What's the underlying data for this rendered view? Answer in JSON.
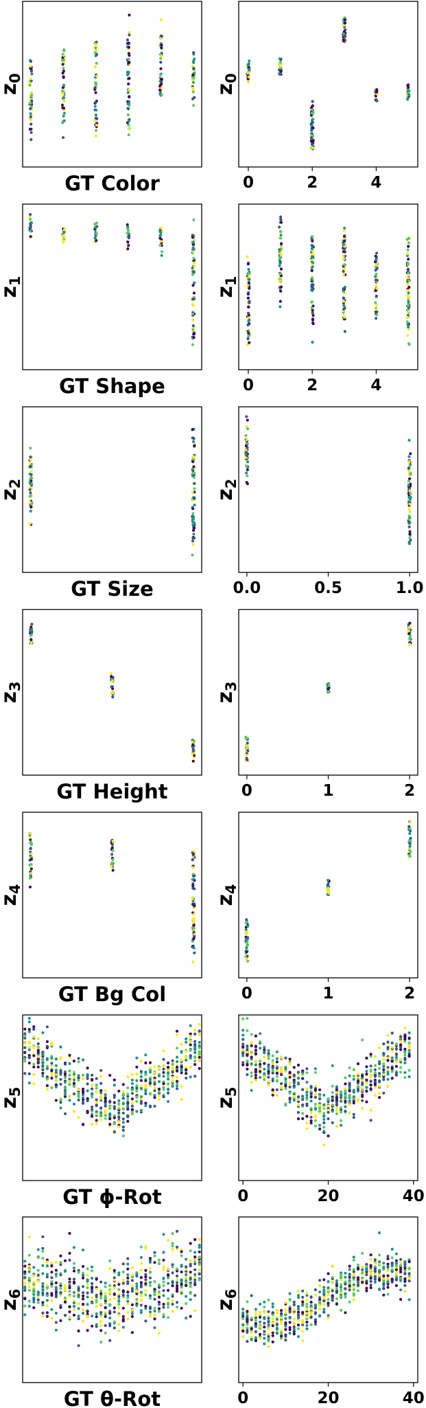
{
  "figure": {
    "left_column": "ground-truth factor vs latent",
    "right_column": "ground-truth index vs latent"
  },
  "colors": {
    "viridis": [
      "#440154",
      "#3b528b",
      "#21918c",
      "#5ec962",
      "#fde725"
    ]
  },
  "chart_data": [
    {
      "type": "scatter",
      "ylabel": "z0",
      "ylabel_sub": "0",
      "left": {
        "xlabel": "GT Color",
        "x_categories": 6,
        "x_ticks": [],
        "groups": [
          {
            "x": 0,
            "ymin": -1.2,
            "ymax": 0.9
          },
          {
            "x": 1,
            "ymin": -0.9,
            "ymax": 1.0
          },
          {
            "x": 2,
            "ymin": -1.0,
            "ymax": 1.3
          },
          {
            "x": 3,
            "ymin": -1.1,
            "ymax": 1.4
          },
          {
            "x": 4,
            "ymin": -0.4,
            "ymax": 1.3
          },
          {
            "x": 5,
            "ymin": -0.4,
            "ymax": 0.9
          }
        ]
      },
      "right": {
        "x_ticks": [
          0,
          2,
          4
        ],
        "xlim": [
          -0.3,
          5.3
        ],
        "groups": [
          {
            "x": 0,
            "ymin": 0.4,
            "ymax": 1.4
          },
          {
            "x": 1,
            "ymin": 0.6,
            "ymax": 1.6
          },
          {
            "x": 2,
            "ymin": -2.6,
            "ymax": -0.1
          },
          {
            "x": 3,
            "ymin": 1.8,
            "ymax": 3.4
          },
          {
            "x": 4,
            "ymin": -0.4,
            "ymax": 0.3
          },
          {
            "x": 5,
            "ymin": -0.3,
            "ymax": 0.5
          }
        ]
      }
    },
    {
      "type": "scatter",
      "ylabel": "z1",
      "ylabel_sub": "1",
      "left": {
        "xlabel": "GT Shape",
        "x_categories": 6,
        "x_ticks": [],
        "groups": [
          {
            "x": 0,
            "ymin": 1.2,
            "ymax": 1.7
          },
          {
            "x": 1,
            "ymin": 1.1,
            "ymax": 1.5
          },
          {
            "x": 2,
            "ymin": 1.1,
            "ymax": 1.6
          },
          {
            "x": 3,
            "ymin": 1.0,
            "ymax": 1.6
          },
          {
            "x": 4,
            "ymin": 0.9,
            "ymax": 1.6
          },
          {
            "x": 5,
            "ymin": -0.9,
            "ymax": 1.7
          }
        ]
      },
      "right": {
        "x_ticks": [
          0,
          2,
          4
        ],
        "xlim": [
          -0.3,
          5.3
        ],
        "groups": [
          {
            "x": 0,
            "ymin": -1.6,
            "ymax": 1.0
          },
          {
            "x": 1,
            "ymin": -0.6,
            "ymax": 1.7
          },
          {
            "x": 2,
            "ymin": -1.2,
            "ymax": 1.6
          },
          {
            "x": 3,
            "ymin": -1.1,
            "ymax": 1.6
          },
          {
            "x": 4,
            "ymin": -0.9,
            "ymax": 1.0
          },
          {
            "x": 5,
            "ymin": -1.4,
            "ymax": 1.6
          }
        ]
      }
    },
    {
      "type": "scatter",
      "ylabel": "z2",
      "ylabel_sub": "2",
      "left": {
        "xlabel": "GT Size",
        "x_categories": 2,
        "x_ticks": [],
        "groups": [
          {
            "x": 0,
            "ymin": -0.6,
            "ymax": 1.3
          },
          {
            "x": 1,
            "ymin": -1.4,
            "ymax": 1.9
          }
        ]
      },
      "right": {
        "x_ticks": [
          "0.0",
          "0.5",
          "1.0"
        ],
        "xlim": [
          -0.05,
          1.05
        ],
        "groups": [
          {
            "x": 0,
            "ymin": 0.2,
            "ymax": 1.9
          },
          {
            "x": 1,
            "ymin": -1.6,
            "ymax": 1.5
          }
        ]
      }
    },
    {
      "type": "scatter",
      "ylabel": "z3",
      "ylabel_sub": "3",
      "left": {
        "xlabel": "GT Height",
        "x_categories": 3,
        "x_ticks": [],
        "groups": [
          {
            "x": 0,
            "ymin": 1.2,
            "ymax": 2.2
          },
          {
            "x": 1,
            "ymin": -0.4,
            "ymax": 0.5
          },
          {
            "x": 2,
            "ymin": -2.6,
            "ymax": -1.6
          }
        ]
      },
      "right": {
        "x_ticks": [
          0,
          1,
          2
        ],
        "xlim": [
          -0.1,
          2.1
        ],
        "groups": [
          {
            "x": 0,
            "ymin": -2.5,
            "ymax": -1.4
          },
          {
            "x": 1,
            "ymin": -0.2,
            "ymax": 0.2
          },
          {
            "x": 2,
            "ymin": 1.2,
            "ymax": 2.2
          }
        ]
      }
    },
    {
      "type": "scatter",
      "ylabel": "z4",
      "ylabel_sub": "4",
      "left": {
        "xlabel": "GT Bg Col",
        "x_categories": 3,
        "x_ticks": [],
        "groups": [
          {
            "x": 0,
            "ymin": -0.2,
            "ymax": 1.3
          },
          {
            "x": 1,
            "ymin": 0.1,
            "ymax": 1.1
          },
          {
            "x": 2,
            "ymin": -1.8,
            "ymax": 1.1
          }
        ]
      },
      "right": {
        "x_ticks": [
          0,
          1,
          2
        ],
        "xlim": [
          -0.1,
          2.1
        ],
        "groups": [
          {
            "x": 0,
            "ymin": -2.1,
            "ymax": -0.5
          },
          {
            "x": 1,
            "ymin": -0.1,
            "ymax": 0.5
          },
          {
            "x": 2,
            "ymin": 0.9,
            "ymax": 2.1
          }
        ]
      }
    },
    {
      "type": "scatter",
      "ylabel": "z5",
      "ylabel_sub": "5",
      "left": {
        "xlabel": "GT ϕ-Rot",
        "x_ticks": [],
        "trend": "v-shape",
        "xlim": [
          0,
          40
        ],
        "x_range": [
          0.5,
          39.5
        ]
      },
      "right": {
        "x_ticks": [
          0,
          20,
          40
        ],
        "xlim": [
          -1,
          41
        ],
        "trend": "v-shape",
        "x_range": [
          0,
          39
        ]
      }
    },
    {
      "type": "scatter",
      "ylabel": "z6",
      "ylabel_sub": "6",
      "left": {
        "xlabel": "GT θ-Rot",
        "x_ticks": [],
        "trend": "shallow-v",
        "xlim": [
          0,
          40
        ],
        "x_range": [
          0.5,
          39.5
        ]
      },
      "right": {
        "x_ticks": [
          0,
          20,
          40
        ],
        "xlim": [
          -1,
          41
        ],
        "trend": "sigmoid-rise",
        "x_range": [
          0,
          39
        ]
      }
    }
  ]
}
